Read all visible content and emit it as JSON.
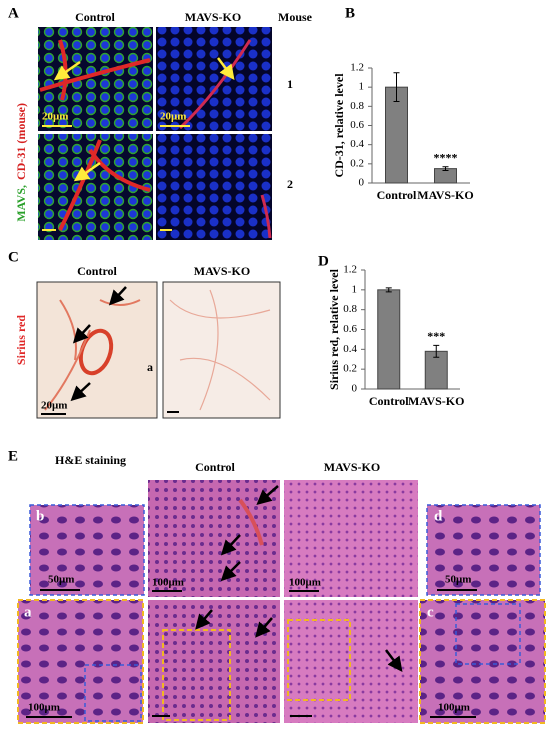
{
  "panels": {
    "a": {
      "label": "A",
      "columns": [
        "Control",
        "MAVS-KO",
        "Mouse"
      ],
      "rows": [
        "1",
        "2"
      ],
      "scale_bars": [
        "20μm",
        "20μm"
      ],
      "stain": [
        "MAVS,",
        "CD-31 (mouse)"
      ]
    },
    "c": {
      "label": "C",
      "columns": [
        "Control",
        "MAVS-KO"
      ],
      "scale_bar": "20μm",
      "stain": "Sirius red",
      "marker": "a"
    },
    "e": {
      "label": "E",
      "title": "H&E staining",
      "columns": [
        "Control",
        "MAVS-KO"
      ],
      "scale_bars": [
        "100μm",
        "100μm"
      ],
      "insets": [
        {
          "label": "b",
          "scale_bar": "50μm"
        },
        {
          "label": "d",
          "scale_bar": "50μm"
        },
        {
          "label": "a",
          "scale_bar": "100μm"
        },
        {
          "label": "c",
          "scale_bar": "100μm"
        }
      ]
    }
  },
  "chart_data": [
    {
      "type": "bar",
      "panel_label": "B",
      "ylabel": "CD-31, relative level",
      "categories": [
        "Control",
        "MAVS-KO"
      ],
      "values": [
        1.0,
        0.15
      ],
      "errors": [
        0.15,
        0.02
      ],
      "color": "#808080",
      "ylim": [
        0,
        1.2
      ],
      "yticks": [
        0,
        0.2,
        0.4,
        0.6,
        0.8,
        1,
        1.2
      ],
      "annotations": [
        "****"
      ]
    },
    {
      "type": "bar",
      "panel_label": "D",
      "ylabel": "Sirius red, relative level",
      "categories": [
        "Control",
        "MAVS-KO"
      ],
      "values": [
        1.0,
        0.38
      ],
      "errors": [
        0.02,
        0.06
      ],
      "color": "#808080",
      "ylim": [
        0,
        1.2
      ],
      "yticks": [
        0,
        0.2,
        0.4,
        0.6,
        0.8,
        1,
        1.2
      ],
      "annotations": [
        "***"
      ]
    }
  ]
}
